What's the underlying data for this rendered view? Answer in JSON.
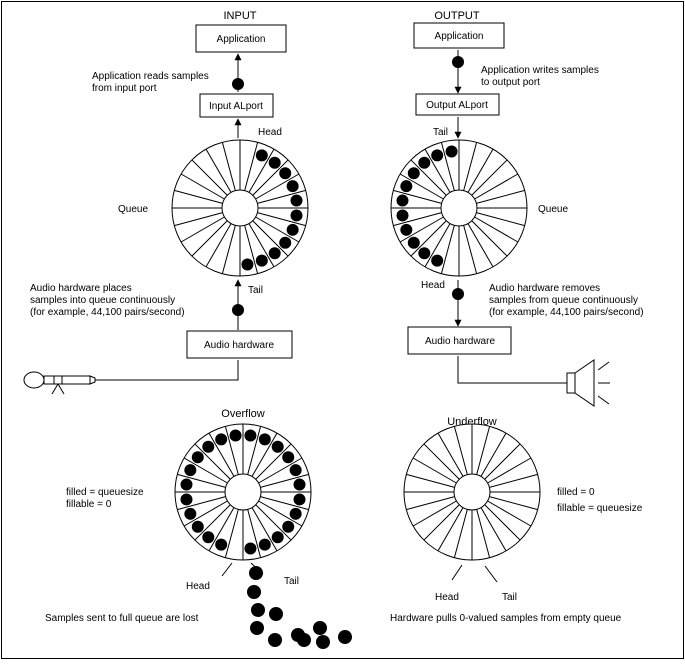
{
  "input": {
    "title": "INPUT",
    "app_label": "Application",
    "reads_label": [
      "Application  reads  samples",
      "from  input  port"
    ],
    "port_label": "Input  ALport",
    "head_label": "Head",
    "tail_label": "Tail",
    "queue_label": "Queue",
    "places_label": [
      "Audio  hardware  places",
      "samples  into  queue  continuously",
      "(for  example,  44,100  pairs/second)"
    ],
    "hw_label": "Audio  hardware",
    "microphone_icon": "microphone-icon"
  },
  "output": {
    "title": "OUTPUT",
    "app_label": "Application",
    "writes_label": [
      "Application  writes  samples",
      "to  output  port"
    ],
    "port_label": "Output  ALport",
    "tail_label": "Tail",
    "head_label": "Head",
    "queue_label": "Queue",
    "removes_label": [
      "Audio  hardware  removes",
      "samples  from  queue  continuously",
      "(for  example,  44,100  pairs/second)"
    ],
    "hw_label": "Audio  hardware",
    "speaker_icon": "speaker-icon"
  },
  "overflow": {
    "title": "Overflow",
    "filled_label": "filled  =  queuesize",
    "fillable_label": "fillable  =  0",
    "head_label": "Head",
    "tail_label": "Tail",
    "caption": "Samples  sent  to  full  queue  are  lost"
  },
  "underflow": {
    "title": "Underflow",
    "filled_label": "filled  =  0",
    "fillable_label": "fillable  =  queuesize",
    "head_label": "Head",
    "tail_label": "Tail",
    "caption": "Hardware  pulls  0-valued  samples  from  empty  queue"
  }
}
